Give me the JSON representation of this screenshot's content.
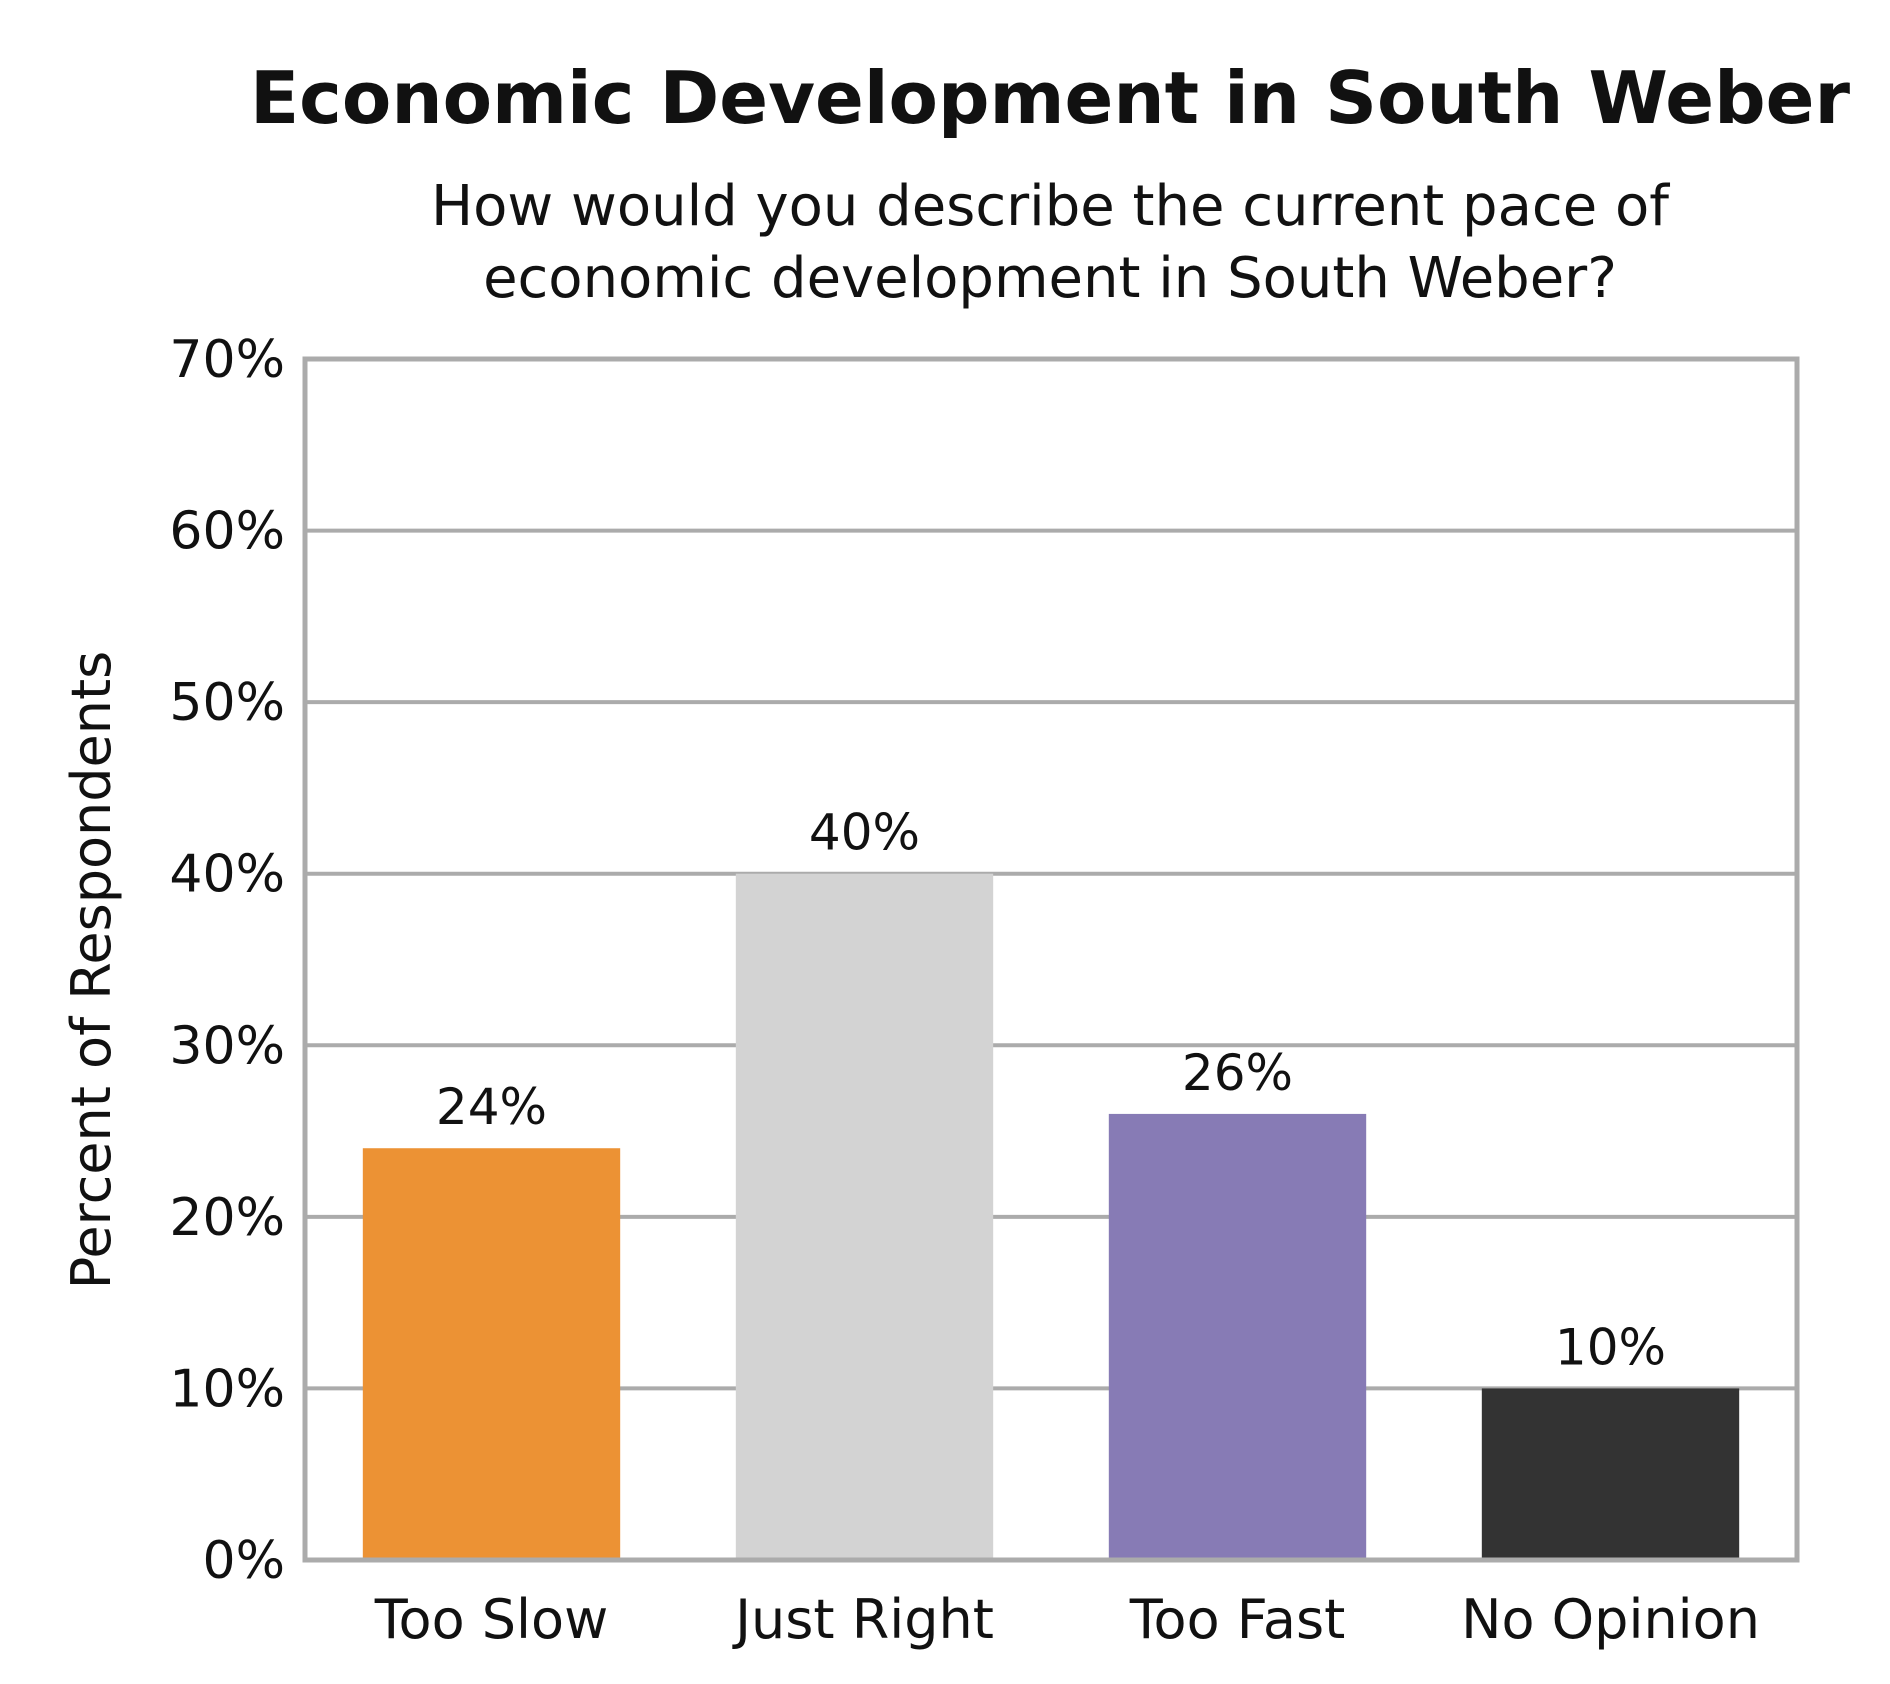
{
  "chart_data": {
    "type": "bar",
    "title": "Economic Development in South Weber",
    "subtitle": [
      "How would you describe the current pace of",
      "economic development in South Weber?"
    ],
    "ylabel": "Percent of Respondents",
    "xlabel": "",
    "categories": [
      "Too Slow",
      "Just Right",
      "Too Fast",
      "No Opinion"
    ],
    "values": [
      24,
      40,
      26,
      10
    ],
    "value_labels": [
      "24%",
      "40%",
      "26%",
      "10%"
    ],
    "colors": [
      "#EC9234",
      "#D3D3D3",
      "#877BB5",
      "#333333"
    ],
    "ylim": [
      0,
      70
    ],
    "yticks": [
      0,
      10,
      20,
      30,
      40,
      50,
      60,
      70
    ],
    "ytick_labels": [
      "0%",
      "10%",
      "20%",
      "30%",
      "40%",
      "50%",
      "60%",
      "70%"
    ],
    "grid": true,
    "legend": "none",
    "frame_color": "#ABABAB",
    "grid_color": "#ABABAB"
  }
}
